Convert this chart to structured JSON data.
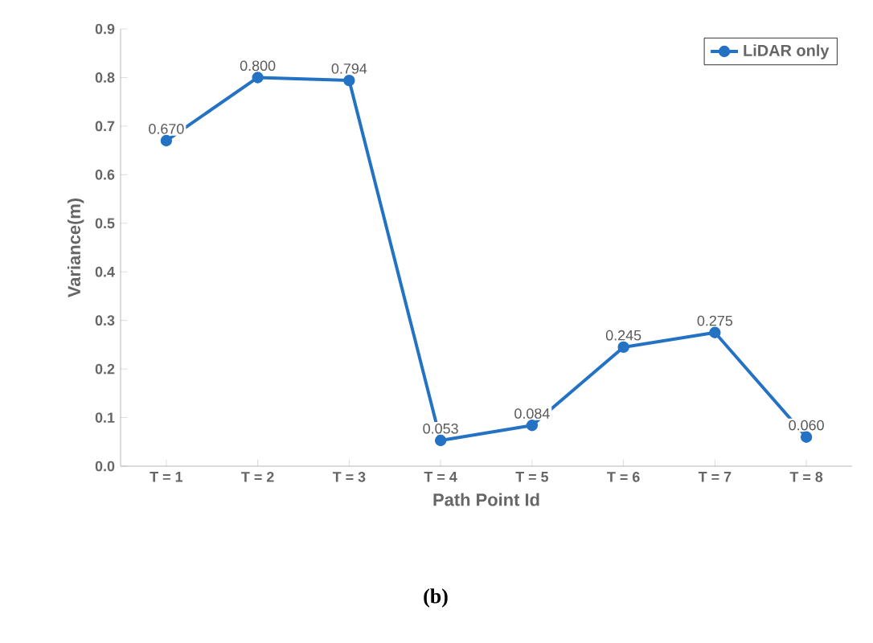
{
  "chart_data": {
    "type": "line",
    "xlabel": "Path Point Id",
    "ylabel": "Variance(m)",
    "categories": [
      "T = 1",
      "T = 2",
      "T = 3",
      "T = 4",
      "T = 5",
      "T = 6",
      "T = 7",
      "T = 8"
    ],
    "series": [
      {
        "name": "LiDAR only",
        "color": "#2372c4",
        "values": [
          0.67,
          0.8,
          0.794,
          0.053,
          0.084,
          0.245,
          0.275,
          0.06
        ],
        "value_labels": [
          "0.670",
          "0.800",
          "0.794",
          "0.053",
          "0.084",
          "0.245",
          "0.275",
          "0.060"
        ]
      }
    ],
    "ylim": [
      0,
      0.9
    ],
    "yticks": [
      {
        "value": 0,
        "label": "0.0"
      },
      {
        "value": 0.1,
        "label": "0.1"
      },
      {
        "value": 0.2,
        "label": "0.2"
      },
      {
        "value": 0.3,
        "label": "0.3"
      },
      {
        "value": 0.4,
        "label": "0.4"
      },
      {
        "value": 0.5,
        "label": "0.5"
      },
      {
        "value": 0.6,
        "label": "0.6"
      },
      {
        "value": 0.7,
        "label": "0.7"
      },
      {
        "value": 0.8,
        "label": "0.8"
      },
      {
        "value": 0.9,
        "label": "0.9"
      }
    ],
    "legend": "top right",
    "marker": "circle",
    "grid": false,
    "annotations": [
      "(b)"
    ]
  }
}
